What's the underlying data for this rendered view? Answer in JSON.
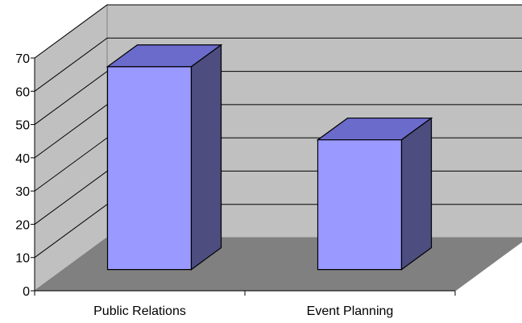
{
  "chart_data": {
    "type": "bar",
    "three_d": true,
    "categories": [
      "Public Relations",
      "Event Planning"
    ],
    "values": [
      61,
      39
    ],
    "ylim": [
      0,
      70
    ],
    "yticks": [
      "0",
      "10",
      "20",
      "30",
      "40",
      "50",
      "60",
      "70"
    ],
    "grid": true,
    "legend": "none",
    "colors": {
      "bar_front": "#9999ff",
      "bar_top": "#6b6bcc",
      "bar_side": "#4d4d80",
      "back_wall": "#c0c0c0",
      "side_wall": "#c0c0c0",
      "floor": "#808080"
    }
  }
}
